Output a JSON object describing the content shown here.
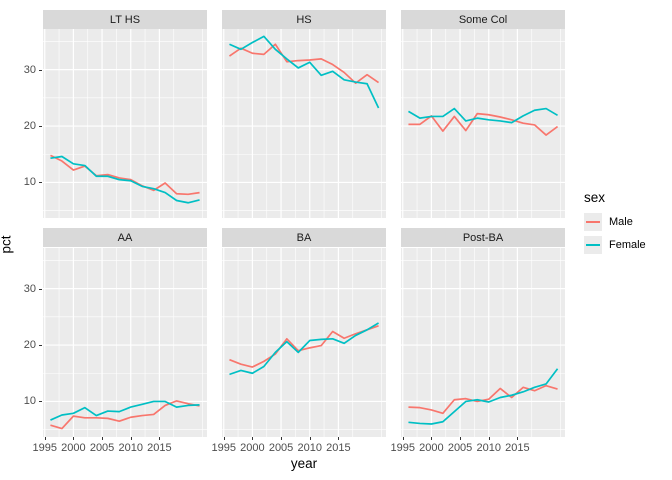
{
  "chart_data": {
    "type": "line",
    "title": "",
    "xlabel": "year",
    "ylabel": "pct",
    "x": [
      1996,
      1998,
      2000,
      2002,
      2004,
      2006,
      2008,
      2010,
      2012,
      2014,
      2016,
      2018,
      2020,
      2022
    ],
    "xlim": [
      1994.7,
      2023.3
    ],
    "ylim": [
      3.7,
      37.2
    ],
    "x_ticks": [
      1995,
      2000,
      2005,
      2010,
      2015
    ],
    "x_tick_labels": [
      "1995",
      "2000",
      "2005",
      "2010",
      "2015"
    ],
    "x_minor": [
      1997.5,
      2002.5,
      2007.5,
      2012.5,
      2017.5,
      2022.5
    ],
    "y_ticks": [
      10,
      20,
      30
    ],
    "y_tick_labels": [
      "10",
      "20",
      "30"
    ],
    "y_minor": [
      5,
      15,
      25,
      35
    ],
    "grid": true,
    "facet_layout": {
      "rows": 2,
      "cols": 3
    },
    "legend": {
      "title": "sex",
      "position": "right",
      "entries": [
        {
          "label": "Male",
          "color": "#F8766D"
        },
        {
          "label": "Female",
          "color": "#00BFC4"
        }
      ]
    },
    "facets": [
      {
        "label": "LT HS",
        "series": [
          {
            "name": "Male",
            "values": [
              14.8,
              13.8,
              12.2,
              12.9,
              11.2,
              11.4,
              10.8,
              10.5,
              9.4,
              8.6,
              9.9,
              8.0,
              7.9,
              8.2
            ]
          },
          {
            "name": "Female",
            "values": [
              14.3,
              14.6,
              13.3,
              13.0,
              11.1,
              11.1,
              10.5,
              10.3,
              9.3,
              8.9,
              8.2,
              6.8,
              6.4,
              6.9
            ]
          }
        ]
      },
      {
        "label": "HS",
        "series": [
          {
            "name": "Male",
            "values": [
              32.4,
              33.8,
              32.9,
              32.7,
              34.5,
              31.4,
              31.6,
              31.7,
              31.9,
              30.9,
              29.5,
              27.6,
              29.1,
              27.7
            ]
          },
          {
            "name": "Female",
            "values": [
              34.5,
              33.6,
              34.8,
              35.9,
              33.6,
              31.9,
              30.3,
              31.3,
              29.0,
              29.7,
              28.2,
              27.8,
              27.5,
              23.2
            ]
          }
        ]
      },
      {
        "label": "Some Col",
        "series": [
          {
            "name": "Male",
            "values": [
              20.3,
              20.3,
              21.8,
              19.1,
              21.7,
              19.2,
              22.2,
              22.0,
              21.6,
              21.1,
              20.5,
              20.2,
              18.4,
              19.9
            ]
          },
          {
            "name": "Female",
            "values": [
              22.6,
              21.4,
              21.7,
              21.7,
              23.1,
              20.9,
              21.4,
              21.1,
              20.9,
              20.6,
              21.8,
              22.8,
              23.1,
              21.9
            ]
          }
        ]
      },
      {
        "label": "AA",
        "series": [
          {
            "name": "Male",
            "values": [
              5.8,
              5.2,
              7.4,
              7.1,
              7.1,
              7.0,
              6.5,
              7.2,
              7.5,
              7.7,
              9.3,
              10.1,
              9.6,
              9.2
            ]
          },
          {
            "name": "Female",
            "values": [
              6.7,
              7.6,
              7.9,
              8.9,
              7.5,
              8.3,
              8.2,
              9.0,
              9.5,
              10.0,
              10.0,
              9.0,
              9.3,
              9.4
            ]
          }
        ]
      },
      {
        "label": "BA",
        "series": [
          {
            "name": "Male",
            "values": [
              17.4,
              16.6,
              16.1,
              17.1,
              18.4,
              21.1,
              19.0,
              19.5,
              19.9,
              22.4,
              21.2,
              22.0,
              22.7,
              23.4
            ]
          },
          {
            "name": "Female",
            "values": [
              14.8,
              15.5,
              15.0,
              16.2,
              18.7,
              20.6,
              18.7,
              20.8,
              21.0,
              21.1,
              20.3,
              21.7,
              22.7,
              23.9
            ]
          }
        ]
      },
      {
        "label": "Post-BA",
        "series": [
          {
            "name": "Male",
            "values": [
              9.0,
              8.9,
              8.5,
              7.9,
              10.3,
              10.5,
              10.0,
              10.4,
              12.3,
              10.7,
              12.5,
              11.9,
              12.8,
              12.2
            ]
          },
          {
            "name": "Female",
            "values": [
              6.3,
              6.1,
              6.0,
              6.4,
              8.2,
              10.0,
              10.3,
              9.9,
              10.7,
              11.1,
              11.7,
              12.5,
              13.1,
              15.8
            ]
          }
        ]
      }
    ]
  },
  "style": {
    "background": "#FFFFFF",
    "panel_bg": "#EBEBEB",
    "strip_bg": "#D9D9D9",
    "grid_color": "#FFFFFF",
    "axis_text_color": "#4D4D4D",
    "strip_text_color": "#1A1A1A",
    "tick_color": "#333333",
    "male_color": "#F8766D",
    "female_color": "#00BFC4",
    "legend_key_bg": "#EBEBEB"
  }
}
